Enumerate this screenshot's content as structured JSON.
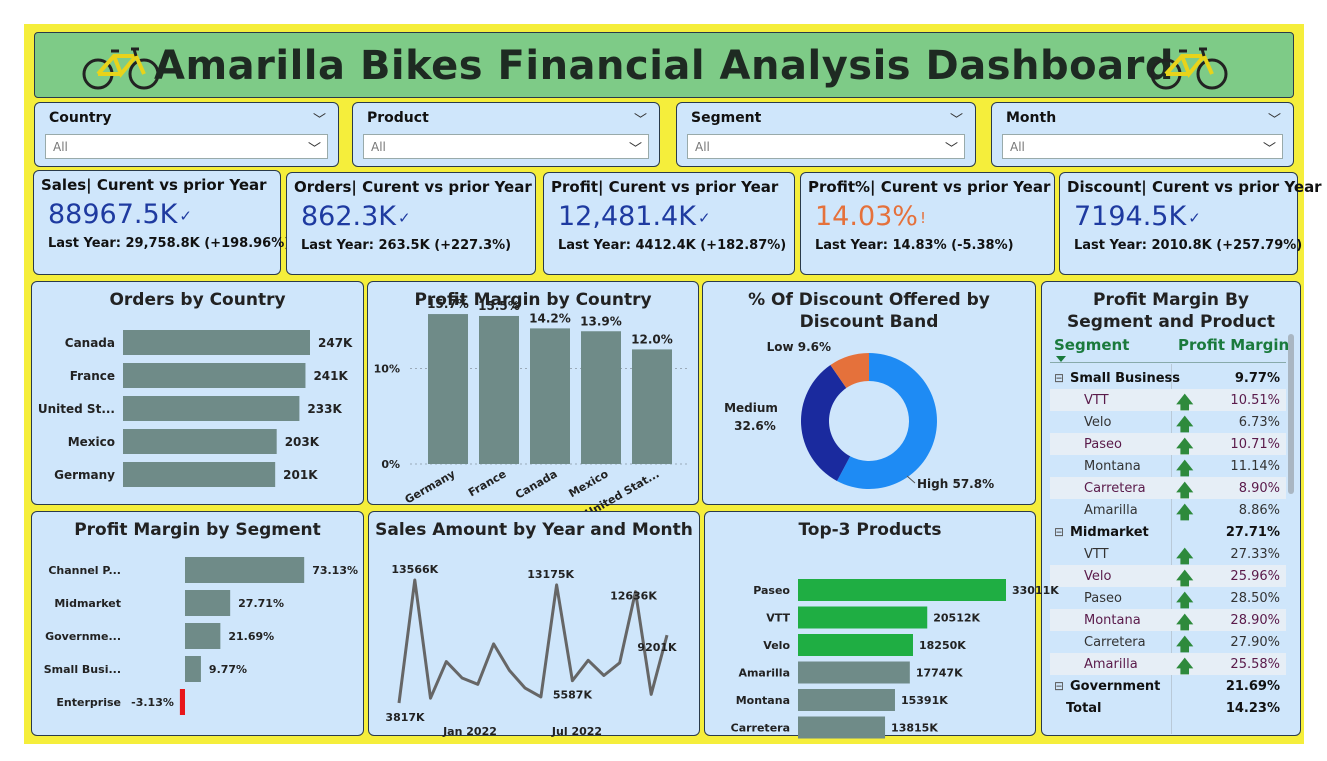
{
  "header": {
    "title": "Amarilla Bikes Financial Analysis Dashboard"
  },
  "slicers": [
    {
      "label": "Country",
      "value": "All"
    },
    {
      "label": "Product",
      "value": "All"
    },
    {
      "label": "Segment",
      "value": "All"
    },
    {
      "label": "Month",
      "value": "All"
    }
  ],
  "kpis": [
    {
      "title": "Sales| Curent vs prior Year",
      "value": "88967.5K",
      "icon": "✓",
      "sub": "Last Year: 29,758.8K (+198.96%)",
      "status": "good"
    },
    {
      "title": "Orders| Curent vs prior Year",
      "value": "862.3K",
      "icon": "✓",
      "sub": "Last Year: 263.5K (+227.3%)",
      "status": "good"
    },
    {
      "title": "Profit| Curent vs prior Year",
      "value": "12,481.4K",
      "icon": "✓",
      "sub": "Last Year: 4412.4K (+182.87%)",
      "status": "good"
    },
    {
      "title": "Profit%| Curent vs prior Year",
      "value": "14.03%",
      "icon": "!",
      "sub": "Last Year: 14.83% (-5.38%)",
      "status": "bad"
    },
    {
      "title": "Discount| Curent vs prior Year",
      "value": "7194.5K",
      "icon": "✓",
      "sub": "Last Year: 2010.8K (+257.79%)",
      "status": "good"
    }
  ],
  "chart_data": [
    {
      "type": "bar",
      "orientation": "horizontal",
      "title": "Orders by Country",
      "categories": [
        "Canada",
        "France",
        "United St...",
        "Mexico",
        "Germany"
      ],
      "values": [
        247,
        241,
        233,
        203,
        201
      ],
      "labels": [
        "247K",
        "241K",
        "233K",
        "203K",
        "201K"
      ],
      "color": "#6f8b88"
    },
    {
      "type": "bar",
      "orientation": "vertical",
      "title": "Profit Margin by Country",
      "categories": [
        "Germany",
        "France",
        "Canada",
        "Mexico",
        "United Stat..."
      ],
      "values": [
        15.7,
        15.5,
        14.2,
        13.9,
        12.0
      ],
      "labels": [
        "15.7%",
        "15.5%",
        "14.2%",
        "13.9%",
        "12.0%"
      ],
      "yticks": [
        "10%",
        "0%"
      ],
      "ylim": [
        0,
        17.5
      ],
      "color": "#6f8b88"
    },
    {
      "type": "pie",
      "donut": true,
      "title": "% Of Discount Offered by Discount Band",
      "slices": [
        {
          "name": "High",
          "value": 57.8,
          "label": "High 57.8%",
          "color": "#1e8bf4"
        },
        {
          "name": "Medium",
          "value": 32.6,
          "label_line1": "Medium",
          "label_line2": "32.6%",
          "color": "#1a2a9e"
        },
        {
          "name": "Low",
          "value": 9.6,
          "label": "Low 9.6%",
          "color": "#e5713b"
        }
      ]
    },
    {
      "type": "bar",
      "orientation": "horizontal",
      "title": "Profit Margin by Segment",
      "categories": [
        "Channel P...",
        "Midmarket",
        "Governme...",
        "Small Busi...",
        "Enterprise"
      ],
      "values": [
        73.13,
        27.71,
        21.69,
        9.77,
        -3.13
      ],
      "labels": [
        "73.13%",
        "27.71%",
        "21.69%",
        "9.77%",
        "-3.13%"
      ],
      "color": "#6f8b88",
      "negative_color": "#e8161a"
    },
    {
      "type": "line",
      "title": "Sales Amount by Year and Month",
      "values": [
        3817,
        13566,
        4200,
        7100,
        5800,
        5300,
        8500,
        6400,
        5000,
        4300,
        13175,
        5587,
        7200,
        6000,
        7000,
        12636,
        4500,
        9201
      ],
      "annotations": [
        "13566K",
        "3817K",
        "13175K",
        "5587K",
        "12636K",
        "9201K"
      ],
      "xticks": [
        "Jan 2022",
        "Jul 2022"
      ],
      "color": "#666666"
    },
    {
      "type": "bar",
      "orientation": "horizontal",
      "title": "Top-3 Products",
      "categories": [
        "Paseo",
        "VTT",
        "Velo",
        "Amarilla",
        "Montana",
        "Carretera"
      ],
      "values": [
        33011,
        20512,
        18250,
        17747,
        15391,
        13815
      ],
      "labels": [
        "33011K",
        "20512K",
        "18250K",
        "17747K",
        "15391K",
        "13815K"
      ],
      "highlight_top": 3,
      "highlight_color": "#1fae43",
      "color": "#6f8b88"
    },
    {
      "type": "table",
      "title": "Profit Margin By Segment and Product",
      "columns": [
        "Segment",
        "Profit Margin"
      ],
      "rows": [
        {
          "kind": "group",
          "label": "Small Business",
          "value": "9.77%"
        },
        {
          "kind": "item",
          "label": "VTT",
          "value": "10.51%",
          "alt": true
        },
        {
          "kind": "item",
          "label": "Velo",
          "value": "6.73%"
        },
        {
          "kind": "item",
          "label": "Paseo",
          "value": "10.71%",
          "alt": true
        },
        {
          "kind": "item",
          "label": "Montana",
          "value": "11.14%"
        },
        {
          "kind": "item",
          "label": "Carretera",
          "value": "8.90%",
          "alt": true
        },
        {
          "kind": "item",
          "label": "Amarilla",
          "value": "8.86%"
        },
        {
          "kind": "group",
          "label": "Midmarket",
          "value": "27.71%"
        },
        {
          "kind": "item",
          "label": "VTT",
          "value": "27.33%"
        },
        {
          "kind": "item",
          "label": "Velo",
          "value": "25.96%",
          "alt": true
        },
        {
          "kind": "item",
          "label": "Paseo",
          "value": "28.50%"
        },
        {
          "kind": "item",
          "label": "Montana",
          "value": "28.90%",
          "alt": true
        },
        {
          "kind": "item",
          "label": "Carretera",
          "value": "27.90%"
        },
        {
          "kind": "item",
          "label": "Amarilla",
          "value": "25.58%",
          "alt": true
        },
        {
          "kind": "group",
          "label": "Government",
          "value": "21.69%"
        },
        {
          "kind": "total",
          "label": "Total",
          "value": "14.23%"
        }
      ]
    }
  ]
}
